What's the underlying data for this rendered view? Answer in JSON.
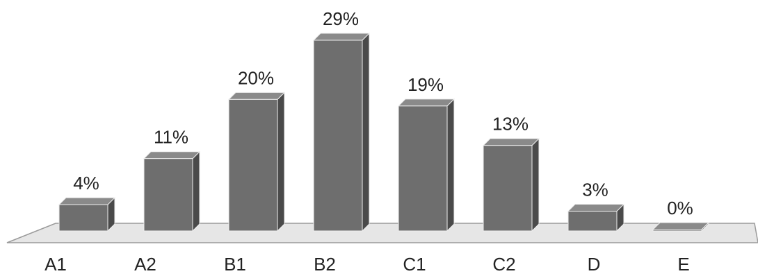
{
  "chart_data": {
    "type": "bar",
    "title": "",
    "xlabel": "",
    "ylabel": "",
    "categories": [
      "A1",
      "A2",
      "B1",
      "B2",
      "C1",
      "C2",
      "D",
      "E"
    ],
    "values": [
      4,
      11,
      20,
      29,
      19,
      13,
      3,
      0
    ],
    "value_labels": [
      "4%",
      "11%",
      "20%",
      "29%",
      "19%",
      "13%",
      "3%",
      "0%"
    ],
    "ylim": [
      0,
      30
    ],
    "grid": false,
    "legend": "none",
    "bar_color": "#6e6e6e",
    "bar_side_color": "#4a4a4a",
    "bar_top_color": "#8a8a8a",
    "floor_color": "#e6e6e6"
  }
}
